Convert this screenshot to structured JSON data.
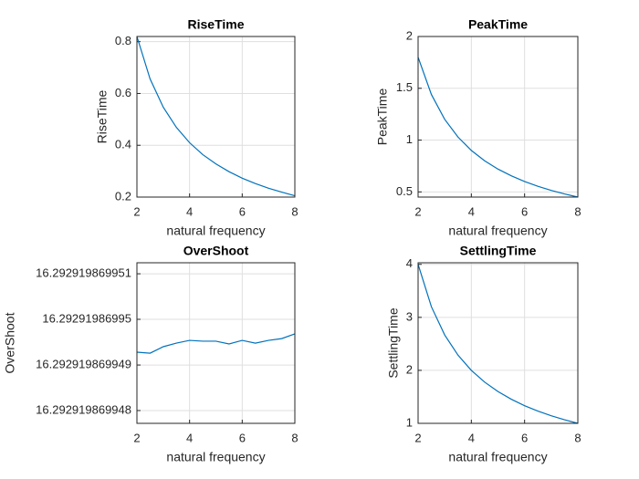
{
  "chart_data": [
    {
      "type": "line",
      "title": "RiseTime",
      "xlabel": "natural frequency",
      "ylabel": "RiseTime",
      "x": [
        2,
        2.5,
        3,
        3.5,
        4,
        4.5,
        5,
        5.5,
        6,
        6.5,
        7,
        7.5,
        8
      ],
      "values": [
        0.82,
        0.656,
        0.547,
        0.469,
        0.41,
        0.364,
        0.328,
        0.298,
        0.273,
        0.252,
        0.234,
        0.219,
        0.205
      ],
      "color": "#0072bd",
      "xlim": [
        2,
        8
      ],
      "xticks": [
        2,
        4,
        6,
        8
      ],
      "ylim": [
        0.2,
        0.82
      ],
      "yticks": [
        0.2,
        0.4,
        0.6,
        0.8
      ],
      "grid": true
    },
    {
      "type": "line",
      "title": "PeakTime",
      "xlabel": "natural frequency",
      "ylabel": "PeakTime",
      "x": [
        2,
        2.5,
        3,
        3.5,
        4,
        4.5,
        5,
        5.5,
        6,
        6.5,
        7,
        7.5,
        8
      ],
      "values": [
        1.8,
        1.44,
        1.2,
        1.029,
        0.9,
        0.8,
        0.72,
        0.655,
        0.6,
        0.554,
        0.514,
        0.48,
        0.45
      ],
      "color": "#0072bd",
      "xlim": [
        2,
        8
      ],
      "xticks": [
        2,
        4,
        6,
        8
      ],
      "ylim": [
        0.45,
        2
      ],
      "yticks": [
        0.5,
        1,
        1.5,
        2
      ],
      "grid": true
    },
    {
      "type": "line",
      "title": "OverShoot",
      "xlabel": "natural frequency",
      "ylabel": "OverShoot",
      "x": [
        2,
        2.5,
        3,
        3.5,
        4,
        4.5,
        5,
        5.5,
        6,
        6.5,
        7,
        7.5,
        8
      ],
      "values": [
        16.29291986994928,
        16.29291986994926,
        16.2929198699494,
        16.29291986994948,
        16.29291986994954,
        16.29291986994952,
        16.29291986994952,
        16.29291986994946,
        16.29291986994954,
        16.29291986994948,
        16.29291986994954,
        16.29291986994958,
        16.29291986994968
      ],
      "color": "#0072bd",
      "xlim": [
        2,
        8
      ],
      "xticks": [
        2,
        4,
        6,
        8
      ],
      "ylim": [
        16.29291986994772,
        16.29291986995124
      ],
      "yticks": [
        16.292919869948,
        16.292919869949,
        16.29291986995,
        16.292919869951
      ],
      "grid": true
    },
    {
      "type": "line",
      "title": "SettlingTime",
      "xlabel": "natural frequency",
      "ylabel": "SettlingTime",
      "x": [
        2,
        2.5,
        3,
        3.5,
        4,
        4.5,
        5,
        5.5,
        6,
        6.5,
        7,
        7.5,
        8
      ],
      "values": [
        4,
        3.2,
        2.667,
        2.286,
        2,
        1.778,
        1.6,
        1.455,
        1.333,
        1.231,
        1.143,
        1.067,
        1
      ],
      "color": "#0072bd",
      "xlim": [
        2,
        8
      ],
      "xticks": [
        2,
        4,
        6,
        8
      ],
      "ylim": [
        1,
        4.03
      ],
      "yticks": [
        1,
        2,
        3,
        4
      ],
      "grid": true
    }
  ]
}
